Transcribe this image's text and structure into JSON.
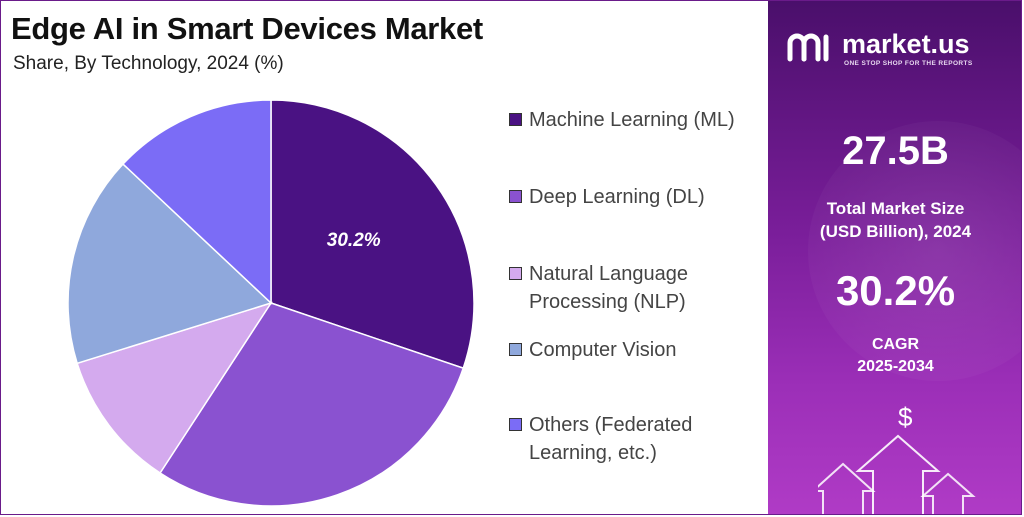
{
  "header": {
    "title": "Edge AI in Smart Devices Market",
    "subtitle": "Share, By Technology, 2024 (%)"
  },
  "chart_data": {
    "type": "pie",
    "title": "Edge AI in Smart Devices Market",
    "subtitle": "Share, By Technology, 2024 (%)",
    "slices": [
      {
        "label": "Machine Learning (ML)",
        "value": 30.2,
        "color": "#4a1283",
        "show_label": true
      },
      {
        "label": "Deep Learning (DL)",
        "value": 29.0,
        "color": "#8a52d0",
        "show_label": false
      },
      {
        "label": "Natural Language Processing (NLP)",
        "value": 11.0,
        "color": "#d4aaee",
        "show_label": false
      },
      {
        "label": "Computer Vision",
        "value": 16.8,
        "color": "#8fa8dc",
        "show_label": false
      },
      {
        "label": "Others (Federated Learning, etc.)",
        "value": 13.0,
        "color": "#7b6cf6",
        "show_label": false
      }
    ],
    "start_angle_deg": 0,
    "direction": "clockwise",
    "legend_position": "right"
  },
  "legend": {
    "items": [
      {
        "label": "Machine Learning (ML)",
        "color": "#4a1283"
      },
      {
        "label": "Deep Learning (DL)",
        "color": "#8a52d0"
      },
      {
        "label": "Natural Language Processing (NLP)",
        "color": "#d4aaee"
      },
      {
        "label": "Computer Vision",
        "color": "#8fa8dc"
      },
      {
        "label": "Others (Federated Learning, etc.)",
        "color": "#7b6cf6"
      }
    ]
  },
  "sidebar": {
    "brand_name": "market.us",
    "brand_tagline": "ONE STOP SHOP FOR THE REPORTS",
    "market_size_value": "27.5B",
    "market_size_label_line1": "Total Market Size",
    "market_size_label_line2": "(USD Billion), 2024",
    "cagr_value": "30.2%",
    "cagr_label_line1": "CAGR",
    "cagr_label_line2": "2025-2034",
    "dollar_symbol": "$"
  }
}
